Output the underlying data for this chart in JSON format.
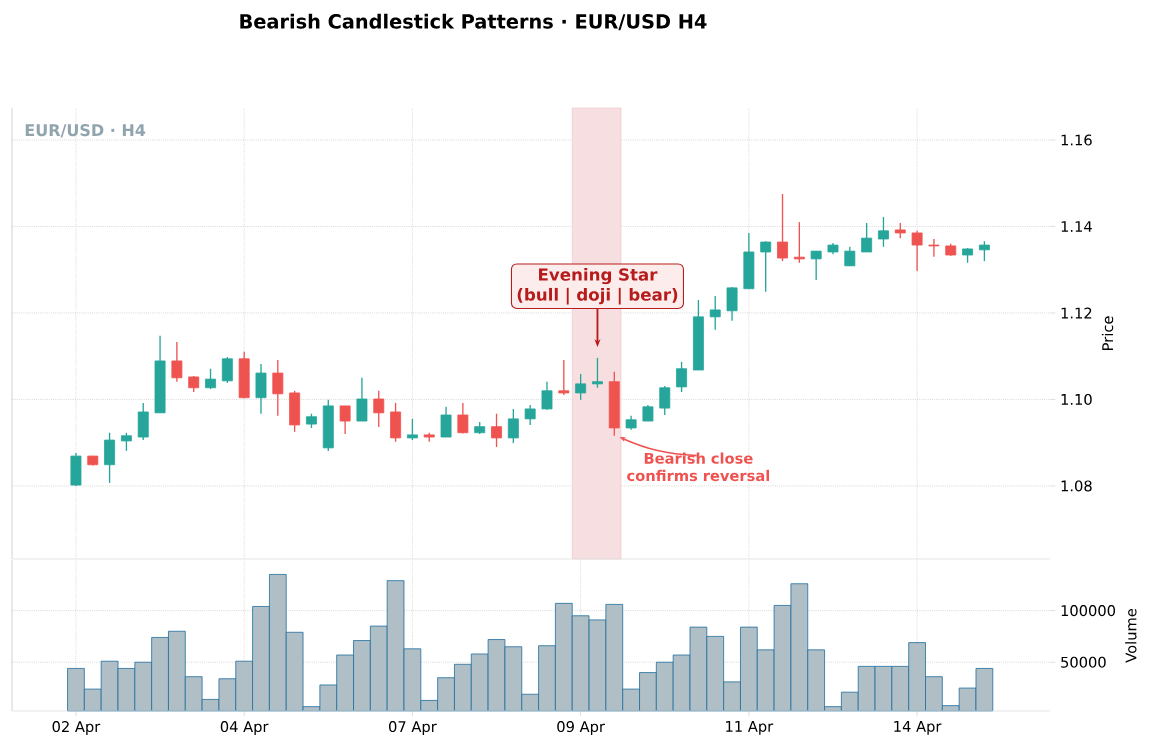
{
  "chart_data": [
    {
      "type": "candlestick",
      "title": "Bearish Candlestick Patterns · EUR/USD H4",
      "ylabel": "Price",
      "categories": [
        null,
        null,
        null,
        null,
        null,
        null,
        null,
        null,
        null,
        null,
        null,
        null,
        null,
        null,
        null,
        null,
        null,
        null,
        null,
        null,
        null,
        null,
        null,
        null,
        null,
        null,
        null,
        null,
        null,
        null,
        null,
        null,
        null,
        null,
        null,
        null,
        null,
        null,
        null,
        null,
        null,
        null,
        null,
        null,
        null,
        null,
        null,
        null,
        null,
        null,
        null,
        null,
        null,
        null,
        null
      ],
      "ohlc": [
        [
          1.0802,
          1.0876,
          1.08,
          1.0869
        ],
        [
          1.0869,
          1.087,
          1.0847,
          1.0849
        ],
        [
          1.0849,
          1.0923,
          1.0807,
          1.0906
        ],
        [
          1.0904,
          1.0923,
          1.0881,
          1.0916
        ],
        [
          1.0913,
          1.0992,
          1.0906,
          1.0971
        ],
        [
          1.0969,
          1.1147,
          1.0969,
          1.1089
        ],
        [
          1.1089,
          1.1133,
          1.1041,
          1.105
        ],
        [
          1.1052,
          1.1054,
          1.1017,
          1.1027
        ],
        [
          1.1027,
          1.1071,
          1.1024,
          1.1047
        ],
        [
          1.1043,
          1.1098,
          1.1038,
          1.1094
        ],
        [
          1.1094,
          1.111,
          1.1003,
          1.1004
        ],
        [
          1.1004,
          1.1082,
          1.0967,
          1.1061
        ],
        [
          1.1061,
          1.1091,
          1.0962,
          1.1013
        ],
        [
          1.1015,
          1.102,
          1.0925,
          1.0941
        ],
        [
          1.0943,
          1.0967,
          1.0934,
          1.096
        ],
        [
          1.0888,
          1.0999,
          1.0881,
          1.0985
        ],
        [
          1.0985,
          1.0985,
          1.092,
          1.095
        ],
        [
          1.095,
          1.105,
          1.095,
          1.1001
        ],
        [
          1.1001,
          1.102,
          1.0936,
          1.0969
        ],
        [
          1.0971,
          1.0992,
          1.0902,
          1.0911
        ],
        [
          1.0911,
          1.0955,
          1.0906,
          1.0918
        ],
        [
          1.0918,
          1.0923,
          1.0902,
          1.0913
        ],
        [
          1.0913,
          1.0983,
          1.0913,
          1.0964
        ],
        [
          1.0964,
          1.0992,
          1.0921,
          1.0923
        ],
        [
          1.0923,
          1.0948,
          1.092,
          1.0937
        ],
        [
          1.0937,
          1.0967,
          1.089,
          1.0911
        ],
        [
          1.0911,
          1.0978,
          1.0899,
          1.0955
        ],
        [
          1.0955,
          1.0987,
          1.0941,
          1.0978
        ],
        [
          1.0978,
          1.1041,
          1.0976,
          1.102
        ],
        [
          1.102,
          1.1091,
          1.101,
          1.1015
        ],
        [
          1.1015,
          1.1059,
          1.0999,
          1.1036
        ],
        [
          1.1036,
          1.1096,
          1.1027,
          1.1041
        ],
        [
          1.1041,
          1.1064,
          1.0916,
          1.0934
        ],
        [
          1.0934,
          1.0962,
          1.093,
          1.0953
        ],
        [
          1.095,
          1.0987,
          1.095,
          1.0983
        ],
        [
          1.098,
          1.1031,
          1.0964,
          1.1027
        ],
        [
          1.1029,
          1.1087,
          1.1017,
          1.1071
        ],
        [
          1.1068,
          1.123,
          1.1068,
          1.1191
        ],
        [
          1.1191,
          1.1239,
          1.1161,
          1.1207
        ],
        [
          1.1205,
          1.126,
          1.1182,
          1.1258
        ],
        [
          1.1256,
          1.1385,
          1.1256,
          1.1341
        ],
        [
          1.1341,
          1.1366,
          1.1249,
          1.1364
        ],
        [
          1.1364,
          1.1475,
          1.132,
          1.1327
        ],
        [
          1.1329,
          1.141,
          1.1316,
          1.1325
        ],
        [
          1.1325,
          1.1343,
          1.1276,
          1.1343
        ],
        [
          1.1341,
          1.1362,
          1.1336,
          1.1357
        ],
        [
          1.1309,
          1.1353,
          1.1309,
          1.1343
        ],
        [
          1.1341,
          1.1408,
          1.1341,
          1.1373
        ],
        [
          1.1371,
          1.1422,
          1.1353,
          1.139
        ],
        [
          1.1392,
          1.1408,
          1.1373,
          1.1385
        ],
        [
          1.1385,
          1.139,
          1.1297,
          1.1357
        ],
        [
          1.1357,
          1.1371,
          1.133,
          1.1355
        ],
        [
          1.1355,
          1.136,
          1.1332,
          1.1334
        ],
        [
          1.1334,
          1.135,
          1.1316,
          1.1348
        ],
        [
          1.1346,
          1.1366,
          1.132,
          1.1357
        ]
      ],
      "colors": [
        "#26a69a",
        "#ef5350",
        "#26a69a",
        "#26a69a",
        "#26a69a",
        "#26a69a",
        "#ef5350",
        "#ef5350",
        "#26a69a",
        "#26a69a",
        "#ef5350",
        "#26a69a",
        "#ef5350",
        "#ef5350",
        "#26a69a",
        "#26a69a",
        "#ef5350",
        "#26a69a",
        "#ef5350",
        "#ef5350",
        "#26a69a",
        "#ef5350",
        "#26a69a",
        "#ef5350",
        "#26a69a",
        "#ef5350",
        "#26a69a",
        "#26a69a",
        "#26a69a",
        "#ef5350",
        "#26a69a",
        "#26a69a",
        "#ef5350",
        "#26a69a",
        "#26a69a",
        "#26a69a",
        "#26a69a",
        "#26a69a",
        "#26a69a",
        "#26a69a",
        "#26a69a",
        "#26a69a",
        "#ef5350",
        "#ef5350",
        "#26a69a",
        "#26a69a",
        "#26a69a",
        "#26a69a",
        "#26a69a",
        "#ef5350",
        "#ef5350",
        "#ef5350",
        "#ef5350",
        "#26a69a",
        "#26a69a"
      ],
      "ylim": [
        1.0631,
        1.1674
      ],
      "yticks": [
        {
          "value": 1.08,
          "label": "1.08"
        },
        {
          "value": 1.1,
          "label": "1.10"
        },
        {
          "value": 1.12,
          "label": "1.12"
        },
        {
          "value": 1.14,
          "label": "1.14"
        },
        {
          "value": 1.16,
          "label": "1.16"
        }
      ],
      "tick_labels": "y",
      "grid": true,
      "annotations": [
        "EUR/USD · H4",
        "Evening Star (bull | doji | bear)",
        "Bearish close confirms reversal"
      ]
    },
    {
      "type": "bar",
      "ylabel": "Volume",
      "color": "#b0bec5",
      "categories": [
        "02 Apr",
        null,
        null,
        null,
        null,
        null,
        null,
        null,
        null,
        null,
        "04 Apr",
        null,
        null,
        null,
        null,
        null,
        null,
        null,
        null,
        null,
        "07 Apr",
        null,
        null,
        null,
        null,
        null,
        null,
        null,
        null,
        null,
        "09 Apr",
        null,
        null,
        null,
        null,
        null,
        null,
        null,
        null,
        null,
        "11 Apr",
        null,
        null,
        null,
        null,
        null,
        null,
        null,
        null,
        null,
        "14 Apr",
        null,
        null,
        null,
        null
      ],
      "values": [
        44000,
        24000,
        51000,
        44000,
        50000,
        74000,
        80000,
        36000,
        14000,
        34000,
        51000,
        104000,
        135000,
        79000,
        7000,
        28000,
        57000,
        71000,
        85000,
        129000,
        63000,
        13000,
        35000,
        48000,
        58000,
        72000,
        65000,
        19000,
        66000,
        107000,
        95000,
        91000,
        106000,
        24000,
        40000,
        50000,
        57000,
        84000,
        75000,
        31000,
        84000,
        62000,
        105000,
        126000,
        62000,
        7000,
        21000,
        46000,
        46000,
        46000,
        69000,
        36000,
        8000,
        25000,
        44000
      ],
      "ylim": [
        2800,
        149000
      ],
      "yticks": [
        50000,
        100000
      ],
      "grid": true
    }
  ]
}
